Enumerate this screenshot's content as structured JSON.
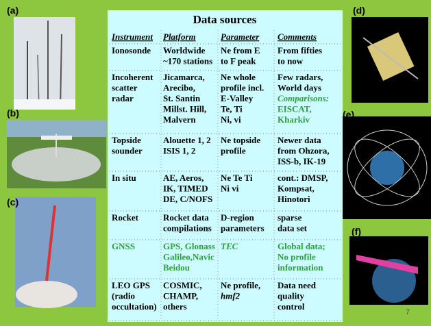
{
  "slide": {
    "title": "Data sources",
    "page_number": "7",
    "image_labels": [
      "(a)",
      "(b)",
      "(c)",
      "(d)",
      "(e)",
      "(f)"
    ],
    "table": {
      "header": [
        "Instrument",
        "Platform",
        "Parameter",
        "Comments"
      ],
      "rows": [
        [
          {
            "lines": [
              "Ionosonde"
            ]
          },
          {
            "lines": [
              "Worldwide",
              "~170 stations"
            ]
          },
          {
            "lines": [
              "Ne from E",
              "to F peak"
            ]
          },
          {
            "lines": [
              "From fifties",
              "to now"
            ]
          }
        ],
        [
          {
            "lines": [
              "Incoherent",
              "scatter",
              " radar"
            ]
          },
          {
            "lines": [
              "Jicamarca,",
              "Arecibo,",
              "St. Santin",
              "Millst. Hill,",
              "Malvern"
            ]
          },
          {
            "lines": [
              "Ne whole",
              "profile incl.",
              "E-Valley",
              "Te, Ti",
              "Ni, vi"
            ]
          },
          {
            "lines": [
              "Few radars,",
              "World days",
              {
                "text": "Comparisons:",
                "color": "#2e9e3e",
                "italic": true
              },
              {
                "text": "EISCAT,",
                "color": "#2e9e3e"
              },
              {
                "text": "Kharkiv",
                "color": "#2e9e3e"
              }
            ]
          }
        ],
        [
          {
            "lines": [
              "Topside",
              "sounder"
            ]
          },
          {
            "lines": [
              "Alouette 1, 2",
              "ISIS 1, 2"
            ]
          },
          {
            "lines": [
              "Ne topside",
              "profile"
            ]
          },
          {
            "lines": [
              "Newer data",
              "from Ohzora,",
              "ISS-b, IK-19"
            ]
          }
        ],
        [
          {
            "lines": [
              "In situ"
            ]
          },
          {
            "lines": [
              "AE, Aeros,",
              "IK, TIMED",
              "DE, C/NOFS"
            ]
          },
          {
            "lines": [
              "Ne Te Ti",
              "Ni vi"
            ]
          },
          {
            "lines": [
              "cont.: DMSP,",
              "Kompsat,",
              "Hinotori"
            ]
          }
        ],
        [
          {
            "lines": [
              "Rocket"
            ]
          },
          {
            "lines": [
              "Rocket data",
              "compilations"
            ]
          },
          {
            "lines": [
              "D-region",
              "parameters"
            ]
          },
          {
            "lines": [
              "sparse",
              "data set"
            ]
          }
        ],
        [
          {
            "lines": [
              {
                "text": "GNSS",
                "color": "#2e9e3e"
              }
            ]
          },
          {
            "lines": [
              {
                "text": "GPS, Glonass",
                "color": "#2e9e3e"
              },
              {
                "text": "Galileo,Navic",
                "color": "#2e9e3e"
              },
              {
                "text": "Beidou",
                "color": "#2e9e3e"
              }
            ]
          },
          {
            "lines": [
              {
                "text": "TEC",
                "color": "#2e9e3e",
                "italic": true
              }
            ]
          },
          {
            "lines": [
              {
                "text": "Global data;",
                "color": "#2e9e3e"
              },
              {
                "text": "No profile",
                "color": "#2e9e3e"
              },
              {
                "text": "information",
                "color": "#2e9e3e"
              }
            ]
          }
        ],
        [
          {
            "lines": [
              "LEO GPS",
              "(radio",
              "occultation)"
            ]
          },
          {
            "lines": [
              "COSMIC,",
              "CHAMP,",
              " others"
            ]
          },
          {
            "lines": [
              "Ne profile,",
              {
                "text": "hmf2",
                "italic": true
              }
            ]
          },
          {
            "lines": [
              "Data need",
              " quality",
              " control"
            ]
          }
        ]
      ]
    }
  }
}
